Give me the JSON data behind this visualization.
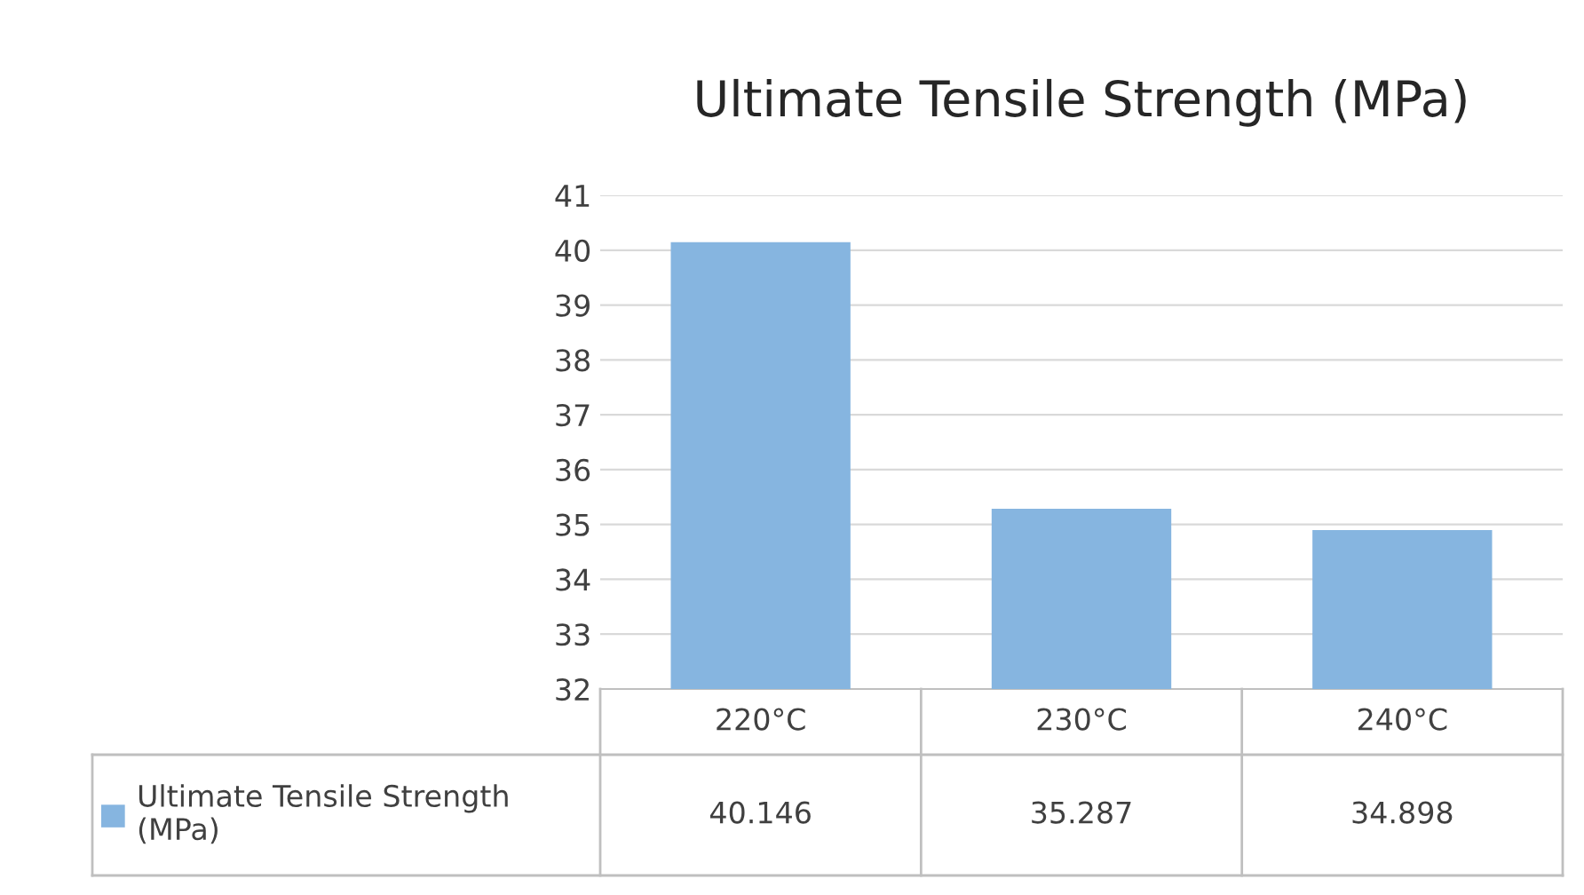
{
  "chart_data": {
    "type": "bar",
    "title": "Ultimate Tensile Strength (MPa)",
    "categories": [
      "220°C",
      "230°C",
      "240°C"
    ],
    "series": [
      {
        "name": "Ultimate Tensile Strength (MPa)",
        "color": "#86b5e0",
        "values": [
          40.146,
          35.287,
          34.898
        ]
      }
    ],
    "ylim": [
      32,
      41
    ],
    "yticks": [
      32,
      33,
      34,
      35,
      36,
      37,
      38,
      39,
      40,
      41
    ],
    "grid": "y",
    "legend": "bottom left",
    "data_labels": true
  }
}
